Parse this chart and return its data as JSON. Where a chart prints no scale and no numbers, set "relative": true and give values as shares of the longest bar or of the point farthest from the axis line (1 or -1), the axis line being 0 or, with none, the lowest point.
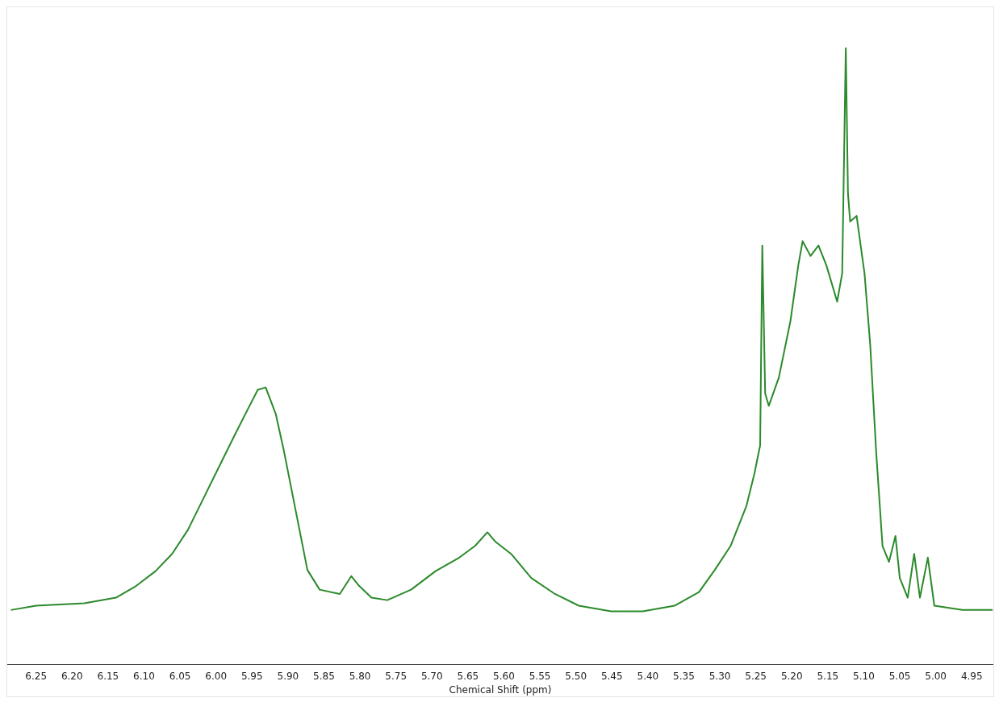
{
  "chart_data": {
    "type": "line",
    "xlabel": "Chemical Shift (ppm)",
    "relative": true,
    "xlim": [
      6.29,
      4.92
    ],
    "xticks": [
      6.25,
      {
        "value": 6.2,
        "label": "6.20"
      },
      6.15,
      {
        "value": 6.1,
        "label": "6.10"
      },
      6.05,
      {
        "value": 6.0,
        "label": "6.00"
      },
      5.95,
      {
        "value": 5.9,
        "label": "5.90"
      },
      5.85,
      {
        "value": 5.8,
        "label": "5.80"
      },
      5.75,
      {
        "value": 5.7,
        "label": "5.70"
      },
      5.65,
      {
        "value": 5.6,
        "label": "5.60"
      },
      5.55,
      {
        "value": 5.5,
        "label": "5.50"
      },
      5.45,
      {
        "value": 5.4,
        "label": "5.40"
      },
      5.35,
      {
        "value": 5.3,
        "label": "5.30"
      },
      5.25,
      {
        "value": 5.2,
        "label": "5.20"
      },
      5.15,
      {
        "value": 5.1,
        "label": "5.10"
      },
      5.05,
      {
        "value": 5.0,
        "label": "5.00"
      },
      4.95
    ],
    "grid": false,
    "legend": false,
    "marker": "none",
    "line_style": "solid",
    "series": [
      {
        "color": "#2b8a2b",
        "x": [
          6.285,
          6.25,
          6.183,
          6.139,
          6.111,
          6.084,
          6.061,
          6.039,
          6.017,
          5.995,
          5.973,
          5.956,
          5.942,
          5.931,
          5.917,
          5.906,
          5.895,
          5.884,
          5.873,
          5.856,
          5.828,
          5.812,
          5.801,
          5.784,
          5.762,
          5.729,
          5.695,
          5.662,
          5.64,
          5.623,
          5.612,
          5.59,
          5.562,
          5.529,
          5.496,
          5.451,
          5.407,
          5.363,
          5.329,
          5.307,
          5.285,
          5.263,
          5.252,
          5.244,
          5.241,
          5.237,
          5.232,
          5.218,
          5.202,
          5.191,
          5.185,
          5.174,
          5.163,
          5.152,
          5.137,
          5.13,
          5.125,
          5.122,
          5.119,
          5.11,
          5.099,
          5.091,
          5.083,
          5.074,
          5.065,
          5.056,
          5.05,
          5.039,
          5.03,
          5.022,
          5.011,
          5.002,
          4.963,
          4.921
        ],
        "values": [
          0.088,
          0.095,
          0.099,
          0.108,
          0.127,
          0.151,
          0.179,
          0.218,
          0.27,
          0.322,
          0.374,
          0.413,
          0.445,
          0.449,
          0.406,
          0.348,
          0.283,
          0.218,
          0.153,
          0.121,
          0.114,
          0.143,
          0.127,
          0.108,
          0.104,
          0.121,
          0.151,
          0.173,
          0.192,
          0.214,
          0.199,
          0.179,
          0.14,
          0.114,
          0.095,
          0.086,
          0.086,
          0.095,
          0.117,
          0.153,
          0.192,
          0.257,
          0.309,
          0.355,
          0.679,
          0.439,
          0.419,
          0.465,
          0.556,
          0.647,
          0.686,
          0.662,
          0.679,
          0.647,
          0.588,
          0.634,
          1,
          0.764,
          0.718,
          0.727,
          0.634,
          0.517,
          0.348,
          0.192,
          0.166,
          0.208,
          0.14,
          0.108,
          0.179,
          0.108,
          0.173,
          0.095,
          0.088,
          0.088
        ]
      }
    ]
  }
}
